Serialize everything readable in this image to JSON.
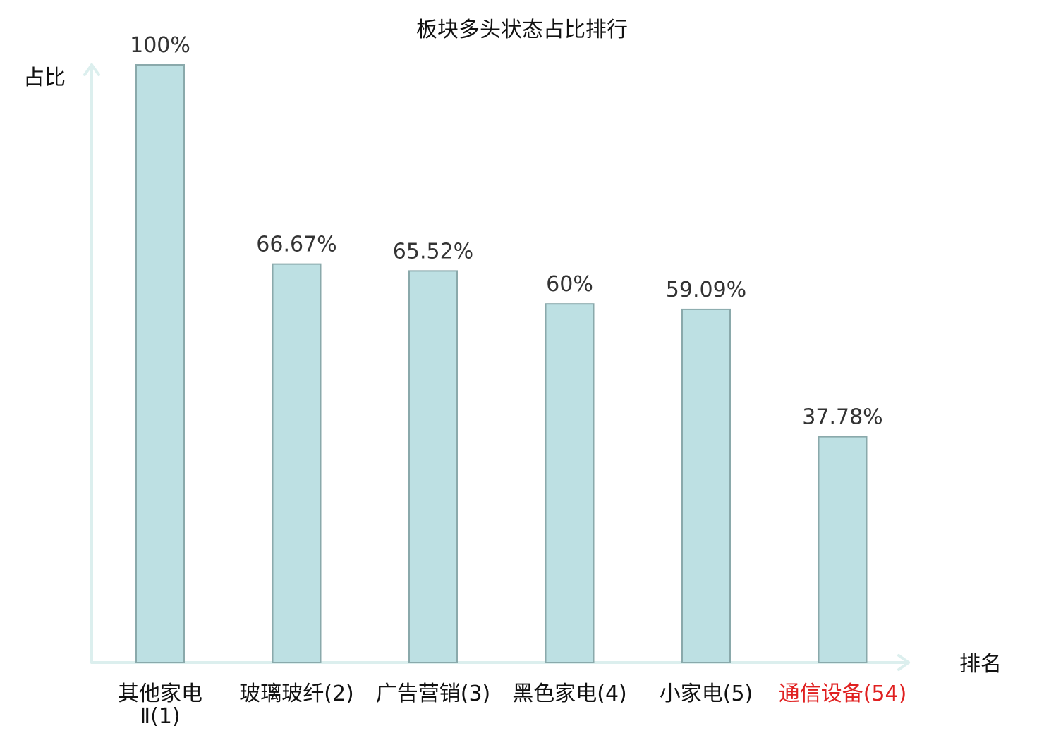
{
  "chart_data": {
    "type": "bar",
    "title": "板块多头状态占比排行",
    "xlabel": "排名",
    "ylabel": "占比",
    "ylim": [
      0,
      100
    ],
    "categories": [
      "其他家电Ⅱ(1)",
      "玻璃玻纤(2)",
      "广告营销(3)",
      "黑色家电(4)",
      "小家电(5)",
      "通信设备(54)"
    ],
    "values": [
      100,
      66.67,
      65.52,
      60,
      59.09,
      37.78
    ],
    "value_labels": [
      "100%",
      "66.67%",
      "65.52%",
      "60%",
      "59.09%",
      "37.78%"
    ],
    "highlight_index": 5,
    "highlight_color": "#e02020",
    "bar_color": "#bde0e3",
    "bar_edge_color": "#8aa9ab",
    "axis_color": "#dcefee",
    "grid": false
  }
}
